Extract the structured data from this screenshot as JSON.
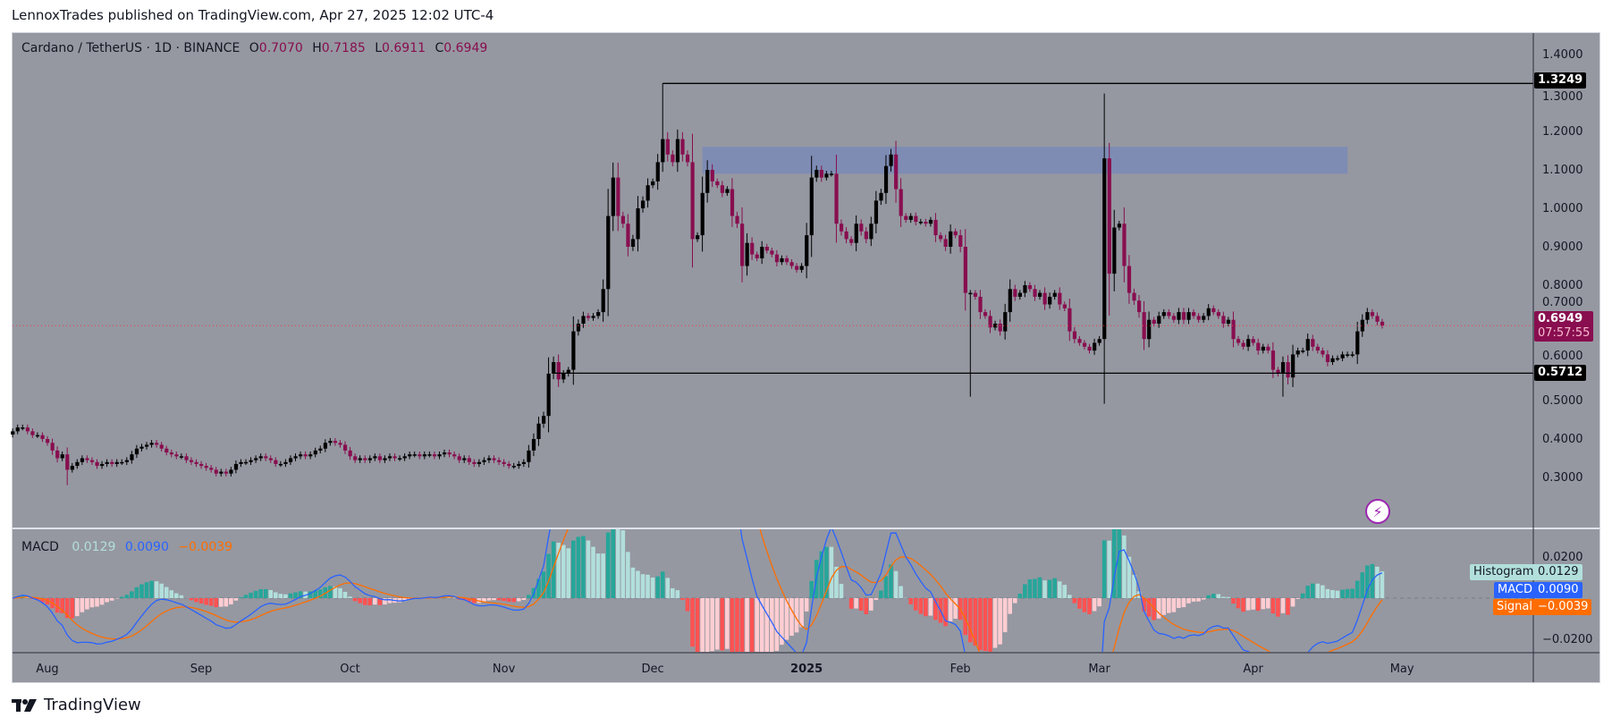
{
  "header": {
    "text": "LennoxTrades published on TradingView.com, Apr 27, 2025 12:02 UTC-4"
  },
  "legend": {
    "symbol": "Cardano / TetherUS · 1D · BINANCE",
    "o_label": "O",
    "o": "0.7070",
    "h_label": "H",
    "h": "0.7185",
    "l_label": "L",
    "l": "0.6911",
    "c_label": "C",
    "c": "0.6949"
  },
  "macd_legend": {
    "label": "MACD",
    "histogram": "0.0129",
    "macd": "0.0090",
    "signal": "−0.0039"
  },
  "price_tags": {
    "top_line": "1.3249",
    "last_price": "0.6949",
    "countdown": "07:57:55",
    "bottom_line": "0.5712"
  },
  "macd_tags": {
    "histogram_label": "Histogram",
    "histogram_value": "0.0129",
    "macd_label": "MACD",
    "macd_value": "0.0090",
    "signal_label": "Signal",
    "signal_value": "−0.0039"
  },
  "price_ticks": [
    "1.4000",
    "1.3000",
    "1.2000",
    "1.1000",
    "1.0000",
    "0.9000",
    "0.8000",
    "0.7000",
    "0.6000",
    "0.5000",
    "0.4000",
    "0.3000"
  ],
  "macd_ticks": [
    "0.0200",
    "−0.0200"
  ],
  "x_ticks": [
    {
      "label": "Aug",
      "date": "2024-08-01"
    },
    {
      "label": "Sep",
      "date": "2024-09-01"
    },
    {
      "label": "Oct",
      "date": "2024-10-01"
    },
    {
      "label": "Nov",
      "date": "2024-11-01"
    },
    {
      "label": "Dec",
      "date": "2024-12-01"
    },
    {
      "label": "2025",
      "date": "2025-01-01"
    },
    {
      "label": "Feb",
      "date": "2025-02-01"
    },
    {
      "label": "Mar",
      "date": "2025-03-01"
    },
    {
      "label": "Apr",
      "date": "2025-04-01"
    },
    {
      "label": "May",
      "date": "2025-05-01"
    }
  ],
  "brand": {
    "name": "TradingView"
  },
  "colors": {
    "background": "#9598a1",
    "bull": "#000000",
    "bear": "#880e4f",
    "zone": "#7e8cb4",
    "macd": "#2962ff",
    "signal": "#ff6d00",
    "hist_pos_up": "#26a69a",
    "hist_pos_down": "#b2dfdb",
    "hist_neg_down": "#ff5252",
    "hist_neg_up": "#ffcdd2",
    "last_price": "#880e4f"
  },
  "icons": {
    "alert": "lightning-bolt-icon",
    "logo": "tradingview-logo-icon"
  },
  "chart_data": {
    "type": "candlestick",
    "indicator": "MACD",
    "first_date": "2024-07-25",
    "last_date": "2025-04-27",
    "ylim": [
      0.27,
      1.42
    ],
    "macd_ylim": [
      -0.03,
      0.03
    ],
    "horizontal_lines": [
      {
        "price": 1.3249,
        "from": "2024-12-03"
      },
      {
        "price": 0.5712,
        "from": "2024-11-11"
      }
    ],
    "zone": {
      "from": "2024-12-11",
      "to": "2025-04-20",
      "low": 1.09,
      "high": 1.16
    },
    "notable_wicks": [
      {
        "date": "2024-08-05",
        "low": 0.28
      },
      {
        "date": "2024-12-03",
        "high": 1.3249
      },
      {
        "date": "2025-02-03",
        "low": 0.51
      },
      {
        "date": "2025-03-03",
        "high": 1.17
      },
      {
        "date": "2025-04-07",
        "low": 0.51
      }
    ],
    "close": [
      0.42,
      0.43,
      0.43,
      0.42,
      0.41,
      0.41,
      0.4,
      0.39,
      0.37,
      0.35,
      0.36,
      0.32,
      0.33,
      0.34,
      0.35,
      0.345,
      0.34,
      0.33,
      0.335,
      0.34,
      0.335,
      0.34,
      0.34,
      0.345,
      0.36,
      0.375,
      0.38,
      0.385,
      0.39,
      0.385,
      0.375,
      0.365,
      0.36,
      0.355,
      0.355,
      0.345,
      0.34,
      0.335,
      0.33,
      0.325,
      0.32,
      0.31,
      0.315,
      0.31,
      0.32,
      0.335,
      0.34,
      0.34,
      0.345,
      0.35,
      0.355,
      0.35,
      0.345,
      0.335,
      0.335,
      0.34,
      0.35,
      0.355,
      0.36,
      0.355,
      0.36,
      0.37,
      0.375,
      0.39,
      0.395,
      0.39,
      0.385,
      0.37,
      0.355,
      0.345,
      0.35,
      0.345,
      0.35,
      0.355,
      0.345,
      0.35,
      0.355,
      0.35,
      0.35,
      0.355,
      0.36,
      0.36,
      0.355,
      0.36,
      0.36,
      0.355,
      0.36,
      0.365,
      0.36,
      0.355,
      0.345,
      0.35,
      0.34,
      0.335,
      0.34,
      0.345,
      0.35,
      0.345,
      0.34,
      0.335,
      0.33,
      0.33,
      0.335,
      0.34,
      0.37,
      0.4,
      0.44,
      0.46,
      0.57,
      0.6,
      0.555,
      0.57,
      0.58,
      0.68,
      0.7,
      0.72,
      0.715,
      0.72,
      0.73,
      0.79,
      0.98,
      1.08,
      0.98,
      0.96,
      0.9,
      0.92,
      1.0,
      1.02,
      1.06,
      1.07,
      1.12,
      1.18,
      1.14,
      1.12,
      1.18,
      1.14,
      1.12,
      0.92,
      0.93,
      1.04,
      1.1,
      1.07,
      1.06,
      1.04,
      1.05,
      0.98,
      0.96,
      0.85,
      0.91,
      0.88,
      0.87,
      0.9,
      0.89,
      0.88,
      0.86,
      0.87,
      0.86,
      0.85,
      0.84,
      0.85,
      0.93,
      1.08,
      1.1,
      1.08,
      1.09,
      1.09,
      0.96,
      0.94,
      0.92,
      0.91,
      0.96,
      0.94,
      0.92,
      0.96,
      1.02,
      1.04,
      1.11,
      1.14,
      1.05,
      0.98,
      0.97,
      0.98,
      0.965,
      0.965,
      0.96,
      0.97,
      0.93,
      0.92,
      0.9,
      0.94,
      0.93,
      0.9,
      0.78,
      0.78,
      0.77,
      0.73,
      0.72,
      0.69,
      0.7,
      0.68,
      0.73,
      0.79,
      0.77,
      0.78,
      0.8,
      0.79,
      0.77,
      0.78,
      0.75,
      0.77,
      0.78,
      0.75,
      0.74,
      0.68,
      0.66,
      0.65,
      0.64,
      0.63,
      0.65,
      0.66,
      1.13,
      0.83,
      0.95,
      0.96,
      0.85,
      0.78,
      0.76,
      0.73,
      0.66,
      0.71,
      0.7,
      0.72,
      0.73,
      0.72,
      0.71,
      0.73,
      0.71,
      0.73,
      0.72,
      0.71,
      0.72,
      0.74,
      0.73,
      0.72,
      0.7,
      0.71,
      0.66,
      0.65,
      0.64,
      0.66,
      0.65,
      0.63,
      0.64,
      0.63,
      0.58,
      0.57,
      0.6,
      0.56,
      0.62,
      0.63,
      0.63,
      0.66,
      0.64,
      0.63,
      0.62,
      0.6,
      0.61,
      0.61,
      0.62,
      0.62,
      0.62,
      0.68,
      0.71,
      0.73,
      0.72,
      0.705,
      0.6949
    ]
  }
}
